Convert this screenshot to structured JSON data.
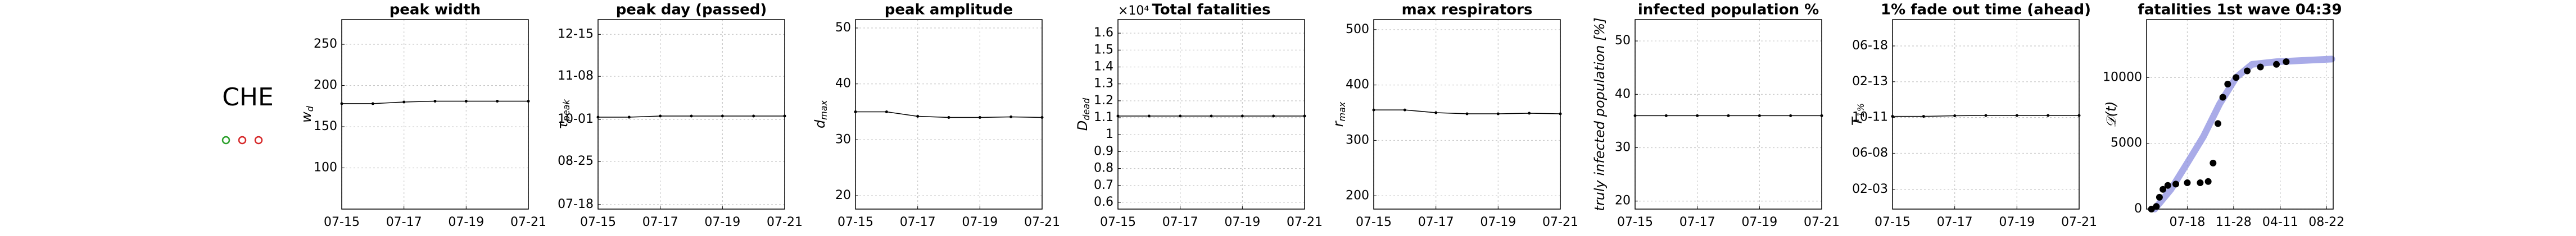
{
  "label": "CHE",
  "status_markers": [
    {
      "color": "#2ca02c"
    },
    {
      "color": "#d62728"
    },
    {
      "color": "#d62728"
    }
  ],
  "chart_data": [
    {
      "type": "line",
      "title": "peak width",
      "ylabel": "w",
      "ylabel_sub": "d",
      "categories": [
        "07-15",
        null,
        "07-17",
        null,
        "07-19",
        null,
        "07-21"
      ],
      "values": [
        178,
        178,
        180,
        181,
        181,
        181,
        181
      ],
      "color": "#000000",
      "ylim": [
        50,
        280
      ],
      "yticks": [
        100,
        150,
        200,
        250
      ],
      "grid": true
    },
    {
      "type": "line",
      "title": "peak day (passed)",
      "ylabel": "τ",
      "ylabel_sub": "peak",
      "categories": [
        "07-15",
        null,
        "07-17",
        null,
        "07-19",
        null,
        "07-21"
      ],
      "values": [
        277,
        277,
        278,
        278,
        278,
        278,
        278
      ],
      "color": "#000000",
      "ylim": [
        196,
        363
      ],
      "yticks": [
        {
          "value": 200,
          "label": "07-18"
        },
        {
          "value": 238,
          "label": "08-25"
        },
        {
          "value": 275,
          "label": "10-01"
        },
        {
          "value": 313,
          "label": "11-08"
        },
        {
          "value": 350,
          "label": "12-15"
        }
      ],
      "grid": true
    },
    {
      "type": "line",
      "title": "peak amplitude",
      "ylabel": "d",
      "ylabel_sub": "max",
      "categories": [
        "07-15",
        null,
        "07-17",
        null,
        "07-19",
        null,
        "07-21"
      ],
      "values": [
        35,
        35,
        34.2,
        34,
        34,
        34.1,
        34
      ],
      "color": "#000000",
      "ylim": [
        17.6,
        51.5
      ],
      "yticks": [
        20,
        30,
        40,
        50
      ],
      "grid": true
    },
    {
      "type": "line",
      "title": "Total fatalities",
      "offset_text": "×10⁴",
      "ylabel": "D",
      "ylabel_sub": "dead",
      "categories": [
        "07-15",
        null,
        "07-17",
        null,
        "07-19",
        null,
        "07-21"
      ],
      "values": [
        1.11,
        1.11,
        1.11,
        1.11,
        1.11,
        1.11,
        1.11
      ],
      "color": "#000000",
      "ylim": [
        0.56,
        1.68
      ],
      "yticks": [
        0.6,
        0.7,
        0.8,
        0.9,
        1,
        1.1,
        1.2,
        1.3,
        1.4,
        1.5,
        1.6
      ],
      "grid": true
    },
    {
      "type": "line",
      "title": "max respirators",
      "ylabel": "r",
      "ylabel_sub": "max",
      "categories": [
        "07-15",
        null,
        "07-17",
        null,
        "07-19",
        null,
        "07-21"
      ],
      "values": [
        355,
        355,
        350,
        348,
        348,
        349,
        348
      ],
      "color": "#000000",
      "ylim": [
        176,
        518
      ],
      "yticks": [
        200,
        300,
        400,
        500
      ],
      "grid": true
    },
    {
      "type": "line",
      "title": "infected population %",
      "ylabel": "truly infected population [%]",
      "categories": [
        "07-15",
        null,
        "07-17",
        null,
        "07-19",
        null,
        "07-21"
      ],
      "values": [
        36,
        36,
        36,
        36,
        36,
        36,
        36
      ],
      "color": "#000000",
      "ylim": [
        18.5,
        54
      ],
      "yticks": [
        20,
        30,
        40,
        50
      ],
      "grid": true
    },
    {
      "type": "line",
      "title": "1% fade out time (ahead)",
      "ylabel": "T",
      "ylabel_sub": "1%",
      "categories": [
        "07-15",
        null,
        "07-17",
        null,
        "07-19",
        null,
        "07-21"
      ],
      "values": [
        289,
        289,
        291,
        292,
        292,
        292,
        292
      ],
      "color": "#000000",
      "ylim": [
        -35,
        627
      ],
      "yticks": [
        {
          "value": 34,
          "label": "02-03"
        },
        {
          "value": 160,
          "label": "06-08"
        },
        {
          "value": 285,
          "label": "10-11"
        },
        {
          "value": 410,
          "label": "02-13"
        },
        {
          "value": 535,
          "label": "06-18"
        }
      ],
      "grid": true
    },
    {
      "type": "timeseries",
      "title": "fatalities 1st wave 04:39",
      "ylabel": "𝒟(t)",
      "xlim": [
        82,
        618
      ],
      "xticks": [
        {
          "value": 199,
          "label": "07-18"
        },
        {
          "value": 332,
          "label": "11-28"
        },
        {
          "value": 466,
          "label": "04-11"
        },
        {
          "value": 599,
          "label": "08-22"
        }
      ],
      "ylim": [
        0,
        14400
      ],
      "yticks": [
        0,
        5000,
        10000
      ],
      "grid": true,
      "series": [
        {
          "style": "line",
          "color": "#8c8fe0",
          "x": [
            105,
            152,
            199,
            245,
            292,
            339,
            385,
            455,
            614
          ],
          "values": [
            0,
            1500,
            3500,
            5500,
            8000,
            10000,
            11000,
            11200,
            11400
          ]
        },
        {
          "style": "points",
          "color": "#000000",
          "x": [
            96,
            110,
            119,
            129,
            143,
            166,
            199,
            236,
            259,
            273,
            287,
            301,
            315,
            339,
            371,
            409,
            455,
            483
          ],
          "values": [
            0,
            200,
            900,
            1500,
            1800,
            1900,
            2000,
            2000,
            2100,
            3500,
            6500,
            8500,
            9500,
            10000,
            10500,
            10800,
            11000,
            11200
          ]
        }
      ]
    }
  ]
}
